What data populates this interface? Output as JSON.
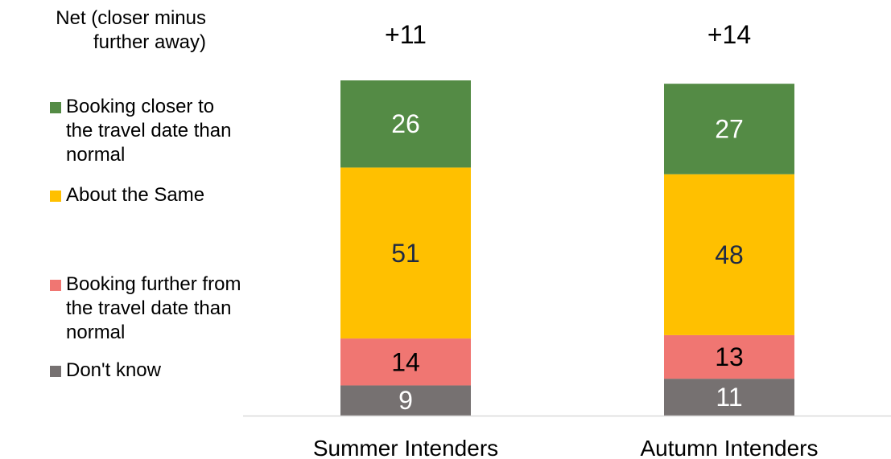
{
  "legend": {
    "net_title": "Net (closer minus further away)",
    "items": [
      {
        "label": "Booking closer to the travel date than normal",
        "color": "#548B45"
      },
      {
        "label": "About the Same",
        "color": "#FFC000"
      },
      {
        "label": "Booking further from the travel date than normal",
        "color": "#F07672"
      },
      {
        "label": "Don't know",
        "color": "#767171"
      }
    ]
  },
  "chart_data": {
    "type": "bar",
    "stacked": true,
    "categories": [
      "Summer Intenders",
      "Autumn Intenders"
    ],
    "net_labels": [
      "+11",
      "+14"
    ],
    "series": [
      {
        "name": "Don't know",
        "values": [
          9,
          11
        ],
        "color": "#767171",
        "label_color": "#ffffff"
      },
      {
        "name": "Booking further from the travel date than normal",
        "values": [
          14,
          13
        ],
        "color": "#F07672",
        "label_color": "#000000"
      },
      {
        "name": "About the Same",
        "values": [
          51,
          48
        ],
        "color": "#FFC000",
        "label_color": "#1F2A44"
      },
      {
        "name": "Booking closer to the travel date than normal",
        "values": [
          26,
          27
        ],
        "color": "#548B45",
        "label_color": "#ffffff"
      }
    ],
    "ylim": [
      0,
      100
    ],
    "grid": false,
    "legend_position": "left"
  }
}
